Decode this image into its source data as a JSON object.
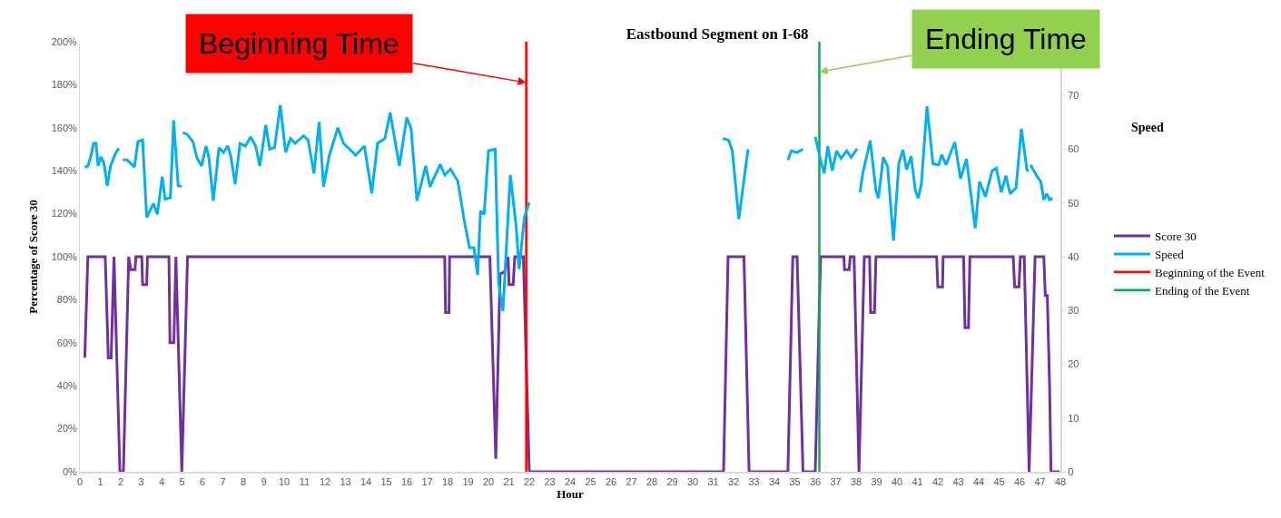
{
  "chart_data": {
    "type": "line",
    "title": "Eastbound Segment on I-68",
    "xlabel": "Hour",
    "ylabel": "Percentage of Score 30",
    "y2label": "Speed",
    "xlim": [
      0,
      48
    ],
    "xticks": [
      0,
      1,
      2,
      3,
      4,
      5,
      6,
      7,
      8,
      9,
      10,
      11,
      12,
      13,
      14,
      15,
      16,
      17,
      18,
      19,
      20,
      21,
      22,
      23,
      24,
      25,
      26,
      27,
      28,
      29,
      30,
      31,
      32,
      33,
      34,
      35,
      36,
      37,
      38,
      39,
      40,
      41,
      42,
      43,
      44,
      45,
      46,
      47,
      48
    ],
    "ylim": [
      0,
      200
    ],
    "yticks": [
      {
        "value": 0,
        "label": "0%"
      },
      {
        "value": 20,
        "label": "20%"
      },
      {
        "value": 40,
        "label": "40%"
      },
      {
        "value": 60,
        "label": "60%"
      },
      {
        "value": 80,
        "label": "80%"
      },
      {
        "value": 100,
        "label": "100%"
      },
      {
        "value": 120,
        "label": "120%"
      },
      {
        "value": 140,
        "label": "140%"
      },
      {
        "value": 160,
        "label": "160%"
      },
      {
        "value": 180,
        "label": "180%"
      },
      {
        "value": 200,
        "label": "200%"
      }
    ],
    "y2lim": [
      0,
      80
    ],
    "y2ticks": [
      0,
      10,
      20,
      30,
      40,
      50,
      60,
      70
    ],
    "legend": "right",
    "marker": "none",
    "line_style": "solid",
    "series": [
      {
        "name": "Score 30",
        "color": "#7030a0",
        "x": [
          0.24,
          0.39,
          1.24,
          1.39,
          1.53,
          1.67,
          1.96,
          2.13,
          2.39,
          2.49,
          2.7,
          2.74,
          3.03,
          3.07,
          3.27,
          3.31,
          4.36,
          4.41,
          4.6,
          4.7,
          4.99,
          5.27,
          17.86,
          17.9,
          18.07,
          18.1,
          20.07,
          20.36,
          20.57,
          20.79,
          20.96,
          21.01,
          21.21,
          21.29,
          21.71,
          22.0,
          31.51,
          31.73,
          32.51,
          32.76,
          34.66,
          34.9,
          35.11,
          35.4,
          36.0,
          36.26,
          37.4,
          37.43,
          37.66,
          37.71,
          37.9,
          38.14,
          38.4,
          38.66,
          38.71,
          38.9,
          38.97,
          41.94,
          42.0,
          42.23,
          42.26,
          43.26,
          43.33,
          43.5,
          43.57,
          45.69,
          45.76,
          45.97,
          46.04,
          46.23,
          46.47,
          46.76,
          47.19,
          47.26,
          47.36,
          47.47,
          47.54,
          47.97
        ],
        "values": [
          53,
          100,
          100,
          53,
          53,
          100,
          0,
          0,
          100,
          94,
          94,
          100,
          100,
          87,
          87,
          100,
          100,
          60,
          60,
          100,
          0,
          100,
          100,
          74,
          74,
          100,
          100,
          6,
          92,
          93,
          100,
          87,
          87,
          100,
          100,
          0,
          0,
          100,
          100,
          0,
          0,
          100,
          100,
          0,
          0,
          100,
          100,
          94,
          94,
          100,
          100,
          0,
          100,
          100,
          74,
          74,
          100,
          100,
          86,
          86,
          100,
          100,
          67,
          67,
          100,
          100,
          86,
          86,
          100,
          100,
          0,
          100,
          100,
          82,
          82,
          40,
          0,
          0
        ]
      },
      {
        "name": "Speed",
        "color": "#00b0f0",
        "axis": "y2",
        "x": [
          0.24,
          0.39,
          0.53,
          0.67,
          0.79,
          0.89,
          1.03,
          1.17,
          1.34,
          1.5,
          1.74,
          1.91,
          2.0,
          2.1,
          2.31,
          2.53,
          2.67,
          2.84,
          3.07,
          3.27,
          3.6,
          3.79,
          4.03,
          4.17,
          4.43,
          4.59,
          4.81,
          4.99,
          5.01,
          5.03,
          5.24,
          5.53,
          5.74,
          5.96,
          6.17,
          6.31,
          6.53,
          6.81,
          7.03,
          7.24,
          7.39,
          7.6,
          7.84,
          8.1,
          8.36,
          8.6,
          8.81,
          9.1,
          9.29,
          9.53,
          9.81,
          10.07,
          10.31,
          10.53,
          10.96,
          11.17,
          11.46,
          11.71,
          11.93,
          12.21,
          12.63,
          12.9,
          13.29,
          13.5,
          13.93,
          14.29,
          14.57,
          14.93,
          15.19,
          15.64,
          16.0,
          16.21,
          16.5,
          16.93,
          17.14,
          17.64,
          17.86,
          18.14,
          18.5,
          18.79,
          19.07,
          19.29,
          19.47,
          19.61,
          19.79,
          20.0,
          20.33,
          20.5,
          20.71,
          21.07,
          21.36,
          21.5,
          21.76,
          22.0,
          27.0,
          31.47,
          31.76,
          31.94,
          32.26,
          32.54,
          32.71,
          33.5,
          34.66,
          34.83,
          35.11,
          35.4,
          35.7,
          36.0,
          36.26,
          36.44,
          36.61,
          36.83,
          37.04,
          37.26,
          37.54,
          37.76,
          38.04,
          38.12,
          38.19,
          38.33,
          38.69,
          38.97,
          39.09,
          39.33,
          39.54,
          39.83,
          40.09,
          40.29,
          40.47,
          40.69,
          40.9,
          41.04,
          41.19,
          41.47,
          41.76,
          42.04,
          42.19,
          42.4,
          42.83,
          43.11,
          43.4,
          43.83,
          44.04,
          44.33,
          44.66,
          44.86,
          45.11,
          45.33,
          45.54,
          45.83,
          46.09,
          46.36,
          46.44,
          46.49,
          46.54,
          46.83,
          47.04,
          47.19,
          47.33,
          47.47,
          47.61
        ],
        "values": [
          56.6,
          56.9,
          58.6,
          61.1,
          61.1,
          56.9,
          58.6,
          57.5,
          53.2,
          56.9,
          59.2,
          60.2,
          null,
          58.0,
          58.0,
          57.2,
          56.7,
          61.4,
          61.7,
          47.3,
          49.9,
          47.9,
          54.9,
          50.7,
          51.0,
          65.4,
          53.2,
          53.1,
          null,
          63.1,
          62.8,
          61.4,
          58.3,
          56.9,
          60.6,
          58.6,
          50.4,
          60.3,
          59.4,
          60.6,
          58.6,
          53.5,
          61.1,
          60.6,
          62.3,
          60.6,
          56.9,
          64.5,
          60.0,
          60.3,
          68.2,
          59.4,
          62.0,
          61.1,
          62.5,
          61.7,
          55.5,
          65.1,
          53.0,
          58.9,
          64.0,
          61.1,
          59.7,
          58.9,
          60.6,
          51.8,
          61.1,
          62.0,
          66.8,
          56.9,
          65.9,
          63.9,
          50.4,
          56.9,
          53.0,
          57.2,
          55.2,
          56.3,
          54.1,
          47.3,
          41.7,
          41.7,
          36.6,
          48.5,
          47.9,
          59.7,
          60.0,
          34.9,
          29.9,
          55.2,
          45.6,
          37.7,
          47.3,
          50.1,
          null,
          62.0,
          61.7,
          59.7,
          47.0,
          55.2,
          60.0,
          null,
          58.0,
          59.7,
          59.4,
          60.0,
          null,
          62.3,
          58.0,
          55.5,
          60.6,
          56.0,
          59.7,
          58.3,
          59.7,
          58.5,
          60.1,
          null,
          52.0,
          55.6,
          61.6,
          52.3,
          50.9,
          58.5,
          56.8,
          43.0,
          57.3,
          59.9,
          56.2,
          58.7,
          52.3,
          50.9,
          53.4,
          68.0,
          57.3,
          57.1,
          59.0,
          57.1,
          61.3,
          54.5,
          58.2,
          45.3,
          54.0,
          51.2,
          56.0,
          56.5,
          52.0,
          55.1,
          51.7,
          52.8,
          63.8,
          56.2,
          55.9,
          null,
          57.1,
          55.1,
          54.0,
          50.6,
          51.7,
          50.6,
          50.9
        ]
      },
      {
        "name": "Beginning of the Event",
        "color": "#ff0000",
        "x": [
          21.85,
          21.85
        ],
        "values": [
          0,
          200
        ]
      },
      {
        "name": "Ending of the Event",
        "color": "#00b050",
        "x": [
          36.2,
          36.2
        ],
        "values": [
          0,
          200
        ]
      }
    ],
    "annotations": [
      {
        "text": "Beginning Time",
        "x": 21.85,
        "y": 181
      },
      {
        "text": "Ending Time",
        "x": 36.2,
        "y": 186
      }
    ]
  }
}
